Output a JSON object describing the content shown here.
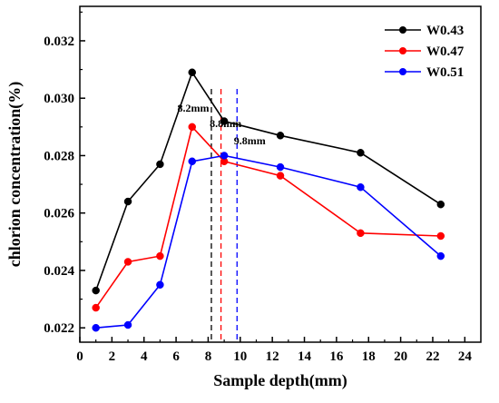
{
  "chart_data": {
    "type": "line",
    "title": "",
    "xlabel": "Sample depth(mm)",
    "ylabel": "chlorion concentration(%)",
    "xlim": [
      0,
      25
    ],
    "ylim": [
      0.0215,
      0.0332
    ],
    "xticks": [
      0,
      2,
      4,
      6,
      8,
      10,
      12,
      14,
      16,
      18,
      20,
      22,
      24
    ],
    "xtick_labels": [
      "0",
      "2",
      "4",
      "6",
      "8",
      "10",
      "12",
      "14",
      "16",
      "18",
      "20",
      "22",
      "24"
    ],
    "yticks": [
      0.022,
      0.024,
      0.026,
      0.028,
      0.03,
      0.032
    ],
    "ytick_labels": [
      "0.022",
      "0.024",
      "0.026",
      "0.028",
      "0.030",
      "0.032"
    ],
    "grid": false,
    "legend_position": "top-right",
    "series": [
      {
        "name": "W0.43",
        "color": "#000000",
        "x": [
          1,
          3,
          5,
          7,
          9,
          12.5,
          17.5,
          22.5
        ],
        "y": [
          0.0233,
          0.0264,
          0.0277,
          0.0309,
          0.0292,
          0.0287,
          0.0281,
          0.0263
        ]
      },
      {
        "name": "W0.47",
        "color": "#ff0000",
        "x": [
          1,
          3,
          5,
          7,
          9,
          12.5,
          17.5,
          22.5
        ],
        "y": [
          0.0227,
          0.0243,
          0.0245,
          0.029,
          0.0278,
          0.0273,
          0.0253,
          0.0252
        ]
      },
      {
        "name": "W0.51",
        "color": "#0000ff",
        "x": [
          1,
          3,
          5,
          7,
          9,
          12.5,
          17.5,
          22.5
        ],
        "y": [
          0.022,
          0.0221,
          0.0235,
          0.0278,
          0.028,
          0.0276,
          0.0269,
          0.0245
        ]
      }
    ],
    "vlines": [
      {
        "x": 8.2,
        "label": "8.2mm",
        "color": "#000000"
      },
      {
        "x": 8.8,
        "label": "8.8mm",
        "color": "#ff0000"
      },
      {
        "x": 9.8,
        "label": "9.8mm",
        "color": "#0000ff"
      }
    ]
  }
}
